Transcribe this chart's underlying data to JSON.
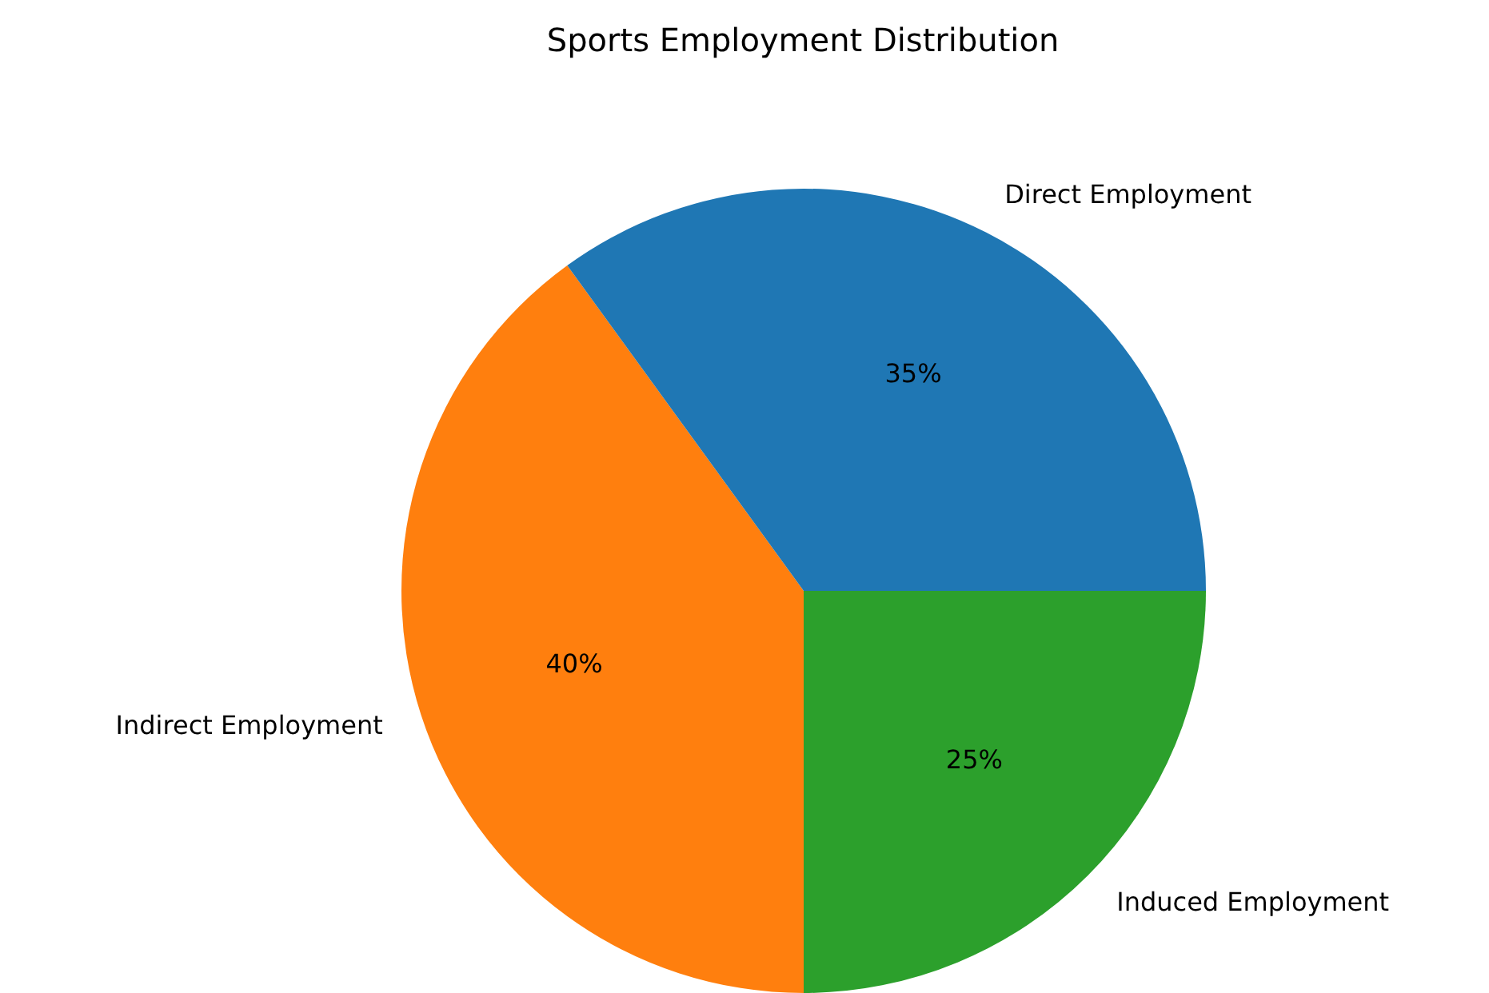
{
  "chart_data": {
    "type": "pie",
    "title": "Sports Employment Distribution",
    "categories": [
      "Direct Employment",
      "Indirect Employment",
      "Induced Employment"
    ],
    "values": [
      35,
      40,
      25
    ],
    "colors": [
      "#1f77b4",
      "#ff7f0e",
      "#2ca02c"
    ],
    "value_labels": [
      "35%",
      "40%",
      "25%"
    ],
    "legend": false
  }
}
